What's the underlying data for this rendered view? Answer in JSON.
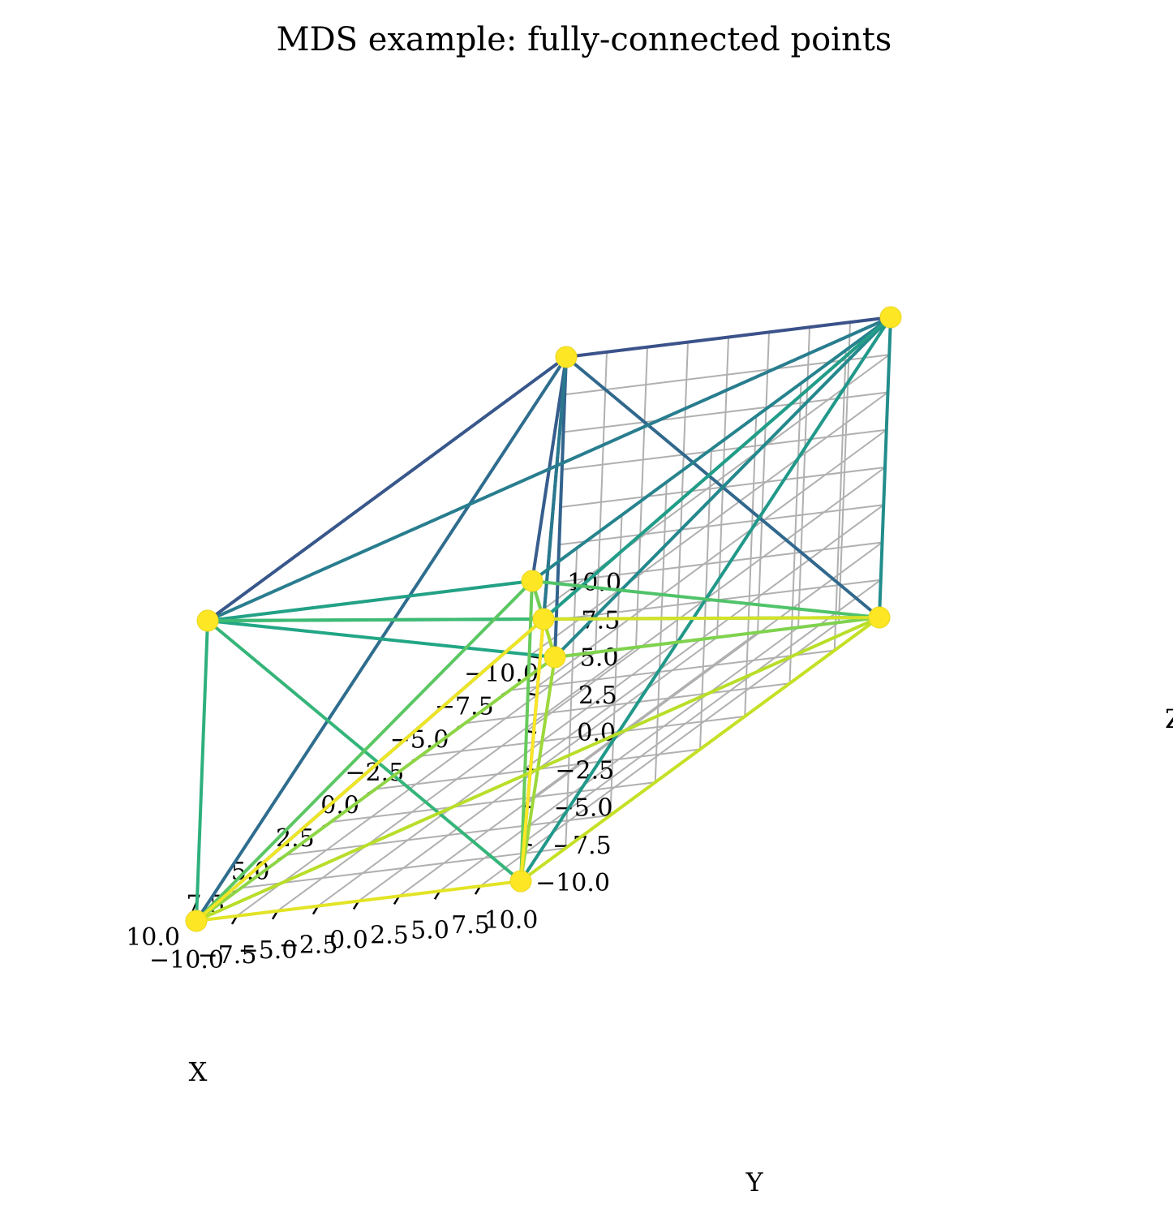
{
  "chart_data": {
    "type": "3d-scatter-graph",
    "title": "MDS example: fully-connected points",
    "xlabel": "X",
    "ylabel": "Y",
    "zlabel": "Z",
    "xlim": [
      -10,
      10
    ],
    "ylim": [
      -10,
      10
    ],
    "zlim": [
      -10,
      10
    ],
    "ticks": [
      -10.0,
      -7.5,
      -5.0,
      -2.5,
      0.0,
      2.5,
      5.0,
      7.5,
      10.0
    ],
    "tick_labels": [
      "−10.0",
      "−7.5",
      "−5.0",
      "−2.5",
      "0.0",
      "2.5",
      "5.0",
      "7.5",
      "10.0"
    ],
    "grid": true,
    "colormap": "viridis",
    "node_color": "#fde725",
    "points": [
      {
        "x": -10,
        "y": -10,
        "z": 10
      },
      {
        "x": -10,
        "y": 10,
        "z": 10
      },
      {
        "x": 10,
        "y": -10,
        "z": 10
      },
      {
        "x": 10,
        "y": 10,
        "z": 10
      },
      {
        "x": -10,
        "y": -10,
        "z": -10
      },
      {
        "x": -10,
        "y": 10,
        "z": -10
      },
      {
        "x": 10,
        "y": -10,
        "z": -10
      },
      {
        "x": 10,
        "y": 10,
        "z": -10
      },
      {
        "x": 0,
        "y": 0,
        "z": 0
      }
    ]
  }
}
